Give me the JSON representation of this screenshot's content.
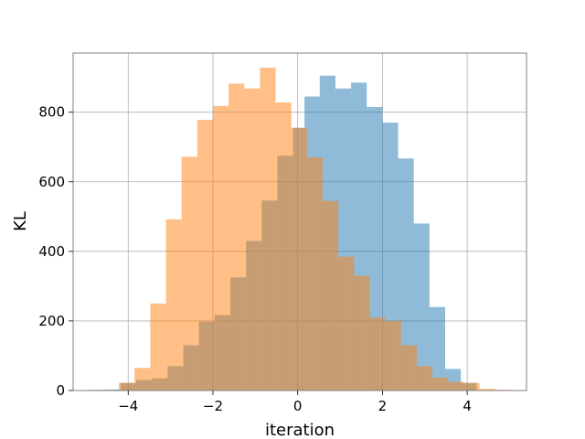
{
  "chart_data": {
    "type": "histogram",
    "title": "",
    "xlabel": "iteration",
    "ylabel": "KL",
    "xlim": [
      -5.3,
      5.4
    ],
    "ylim": [
      0,
      970
    ],
    "grid": true,
    "x_ticks": [
      -4,
      -2,
      0,
      2,
      4
    ],
    "x_tick_labels": [
      "−4",
      "−2",
      "0",
      "2",
      "4"
    ],
    "y_ticks": [
      0,
      200,
      400,
      600,
      800
    ],
    "y_tick_labels": [
      "0",
      "200",
      "400",
      "600",
      "800"
    ],
    "series": [
      {
        "color": "#1f77b4",
        "alpha": 0.5,
        "bins": [
          [
            -4.92,
            -4.55,
            2
          ],
          [
            -4.55,
            -4.18,
            3
          ],
          [
            -4.18,
            -3.81,
            22
          ],
          [
            -3.81,
            -3.44,
            30
          ],
          [
            -3.44,
            -3.07,
            35
          ],
          [
            -3.07,
            -2.7,
            70
          ],
          [
            -2.7,
            -2.33,
            130
          ],
          [
            -2.33,
            -1.96,
            198
          ],
          [
            -1.96,
            -1.59,
            217
          ],
          [
            -1.59,
            -1.22,
            325
          ],
          [
            -1.22,
            -0.85,
            430
          ],
          [
            -0.85,
            -0.48,
            546
          ],
          [
            -0.48,
            -0.11,
            675
          ],
          [
            -0.11,
            0.16,
            755
          ],
          [
            0.16,
            0.52,
            845
          ],
          [
            0.52,
            0.89,
            905
          ],
          [
            0.89,
            1.26,
            868
          ],
          [
            1.26,
            1.63,
            885
          ],
          [
            1.63,
            2.0,
            815
          ],
          [
            2.0,
            2.37,
            770
          ],
          [
            2.37,
            2.74,
            667
          ],
          [
            2.74,
            3.11,
            480
          ],
          [
            3.11,
            3.48,
            240
          ],
          [
            3.48,
            3.85,
            62
          ],
          [
            3.85,
            4.22,
            22
          ]
        ]
      },
      {
        "color": "#ff7f0e",
        "alpha": 0.5,
        "bins": [
          [
            -4.22,
            -3.85,
            22
          ],
          [
            -3.85,
            -3.48,
            65
          ],
          [
            -3.48,
            -3.11,
            250
          ],
          [
            -3.11,
            -2.74,
            492
          ],
          [
            -2.74,
            -2.37,
            672
          ],
          [
            -2.37,
            -2.0,
            778
          ],
          [
            -2.0,
            -1.63,
            818
          ],
          [
            -1.63,
            -1.26,
            882
          ],
          [
            -1.26,
            -0.89,
            868
          ],
          [
            -0.89,
            -0.52,
            928
          ],
          [
            -0.52,
            -0.15,
            828
          ],
          [
            -0.15,
            0.22,
            755
          ],
          [
            0.22,
            0.59,
            670
          ],
          [
            0.59,
            0.96,
            545
          ],
          [
            0.96,
            1.33,
            385
          ],
          [
            1.33,
            1.7,
            330
          ],
          [
            1.7,
            2.07,
            210
          ],
          [
            2.07,
            2.44,
            200
          ],
          [
            2.44,
            2.81,
            130
          ],
          [
            2.81,
            3.18,
            70
          ],
          [
            3.18,
            3.55,
            37
          ],
          [
            3.55,
            3.92,
            25
          ],
          [
            3.92,
            4.29,
            22
          ],
          [
            4.29,
            4.66,
            5
          ],
          [
            4.66,
            5.03,
            2
          ]
        ]
      }
    ]
  }
}
